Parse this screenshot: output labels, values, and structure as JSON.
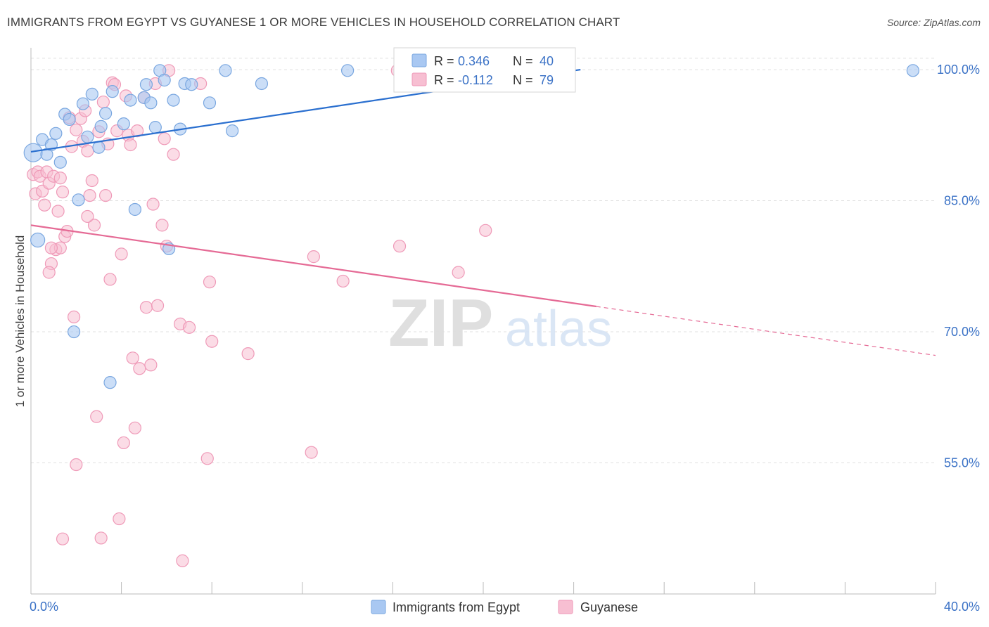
{
  "title": "IMMIGRANTS FROM EGYPT VS GUYANESE 1 OR MORE VEHICLES IN HOUSEHOLD CORRELATION CHART",
  "source": "Source: ZipAtlas.com",
  "watermark": {
    "zip": "ZIP",
    "atlas": "atlas"
  },
  "legend_box": {
    "rows": [
      {
        "r_label": "R = ",
        "r_value": "0.346",
        "n_label": "N = ",
        "n_value": "40"
      },
      {
        "r_label": "R = ",
        "r_value": "-0.112",
        "n_label": "N = ",
        "n_value": "79"
      }
    ]
  },
  "colors": {
    "egypt_fill": "#a9c8f2",
    "egypt_stroke": "#7aa7e0",
    "egypt_line": "#2a6fcf",
    "guyanese_fill": "#f7bfd2",
    "guyanese_stroke": "#ef9ab8",
    "guyanese_line": "#e56a95",
    "value_text": "#3b72c6",
    "grid": "#e0e0e0"
  },
  "chart_data": {
    "type": "scatter",
    "xlabel": "",
    "ylabel": "1 or more Vehicles in Household",
    "xlim": [
      0,
      40
    ],
    "ylim": [
      40,
      102.5
    ],
    "x_tick_labels": [
      {
        "value": 0,
        "label": "0.0%"
      },
      {
        "value": 40,
        "label": "40.0%"
      }
    ],
    "y_tick_labels": [
      {
        "value": 100,
        "label": "100.0%"
      },
      {
        "value": 85,
        "label": "85.0%"
      },
      {
        "value": 70,
        "label": "70.0%"
      },
      {
        "value": 55,
        "label": "55.0%"
      }
    ],
    "gridlines_y": [
      101.3,
      100,
      85,
      70,
      55
    ],
    "x_minor_ticks": [
      0,
      4,
      8,
      12,
      16,
      20,
      24,
      28,
      32,
      36,
      40
    ],
    "grid": true,
    "legend_position": "bottom-center",
    "series": [
      {
        "name": "Immigrants from Egypt",
        "R": 0.346,
        "N": 40,
        "trend": {
          "x0": 0,
          "y0": 90.6,
          "x1": 24.3,
          "y1": 100.0
        },
        "points": [
          [
            0.1,
            90.5
          ],
          [
            0.3,
            80.5
          ],
          [
            0.5,
            92
          ],
          [
            0.7,
            90.3
          ],
          [
            0.9,
            91.4
          ],
          [
            1.1,
            92.7
          ],
          [
            1.3,
            89.4
          ],
          [
            1.5,
            94.9
          ],
          [
            1.7,
            94.3
          ],
          [
            2.1,
            85.1
          ],
          [
            2.3,
            96.1
          ],
          [
            2.5,
            92.3
          ],
          [
            2.7,
            97.2
          ],
          [
            3.0,
            91.1
          ],
          [
            3.1,
            93.5
          ],
          [
            3.3,
            95.0
          ],
          [
            3.6,
            97.5
          ],
          [
            4.1,
            93.8
          ],
          [
            4.4,
            96.5
          ],
          [
            4.6,
            84.0
          ],
          [
            5.0,
            96.8
          ],
          [
            5.1,
            98.3
          ],
          [
            5.3,
            96.2
          ],
          [
            5.5,
            93.4
          ],
          [
            5.7,
            99.9
          ],
          [
            5.9,
            98.8
          ],
          [
            6.1,
            79.5
          ],
          [
            6.3,
            96.5
          ],
          [
            6.6,
            93.2
          ],
          [
            6.8,
            98.4
          ],
          [
            7.1,
            98.3
          ],
          [
            7.9,
            96.2
          ],
          [
            8.6,
            99.9
          ],
          [
            8.9,
            93.0
          ],
          [
            10.2,
            98.4
          ],
          [
            14.0,
            99.9
          ],
          [
            1.9,
            70.0
          ],
          [
            3.5,
            64.2
          ],
          [
            19.2,
            99.9
          ],
          [
            39.0,
            99.9
          ]
        ]
      },
      {
        "name": "Guyanese",
        "R": -0.112,
        "N": 79,
        "trend": {
          "x0": 0,
          "y0": 82.2,
          "x1": 25,
          "y1": 72.9
        },
        "trend_dashed": {
          "x0": 25,
          "y0": 72.9,
          "x1": 40,
          "y1": 67.3
        },
        "points": [
          [
            0.1,
            88.0
          ],
          [
            0.2,
            85.8
          ],
          [
            0.3,
            88.3
          ],
          [
            0.4,
            87.8
          ],
          [
            0.5,
            86.1
          ],
          [
            0.6,
            84.5
          ],
          [
            0.7,
            88.3
          ],
          [
            0.8,
            87.0
          ],
          [
            0.9,
            77.8
          ],
          [
            0.8,
            76.8
          ],
          [
            1.0,
            87.8
          ],
          [
            1.1,
            79.4
          ],
          [
            1.2,
            83.8
          ],
          [
            1.3,
            79.6
          ],
          [
            1.4,
            86.0
          ],
          [
            1.5,
            80.9
          ],
          [
            1.6,
            81.5
          ],
          [
            1.7,
            94.5
          ],
          [
            1.8,
            91.2
          ],
          [
            1.9,
            71.7
          ],
          [
            2.0,
            93.1
          ],
          [
            2.2,
            94.4
          ],
          [
            2.3,
            91.8
          ],
          [
            2.4,
            95.3
          ],
          [
            2.5,
            90.7
          ],
          [
            2.6,
            85.6
          ],
          [
            2.7,
            87.3
          ],
          [
            2.8,
            82.2
          ],
          [
            2.9,
            60.3
          ],
          [
            3.0,
            92.9
          ],
          [
            3.1,
            46.4
          ],
          [
            3.2,
            96.3
          ],
          [
            3.3,
            85.6
          ],
          [
            3.4,
            91.5
          ],
          [
            3.5,
            76.0
          ],
          [
            3.6,
            98.5
          ],
          [
            3.7,
            98.3
          ],
          [
            3.8,
            93.0
          ],
          [
            3.9,
            48.6
          ],
          [
            4.0,
            78.9
          ],
          [
            4.1,
            57.3
          ],
          [
            4.2,
            97.0
          ],
          [
            4.3,
            92.5
          ],
          [
            4.4,
            91.4
          ],
          [
            4.5,
            67.0
          ],
          [
            4.6,
            59.0
          ],
          [
            4.7,
            93.0
          ],
          [
            4.8,
            65.8
          ],
          [
            5.0,
            96.8
          ],
          [
            5.1,
            72.8
          ],
          [
            5.3,
            66.2
          ],
          [
            5.4,
            84.6
          ],
          [
            5.5,
            98.4
          ],
          [
            5.6,
            73.0
          ],
          [
            5.8,
            82.2
          ],
          [
            5.9,
            92.1
          ],
          [
            6.0,
            79.8
          ],
          [
            6.1,
            99.9
          ],
          [
            6.3,
            90.3
          ],
          [
            6.6,
            70.9
          ],
          [
            6.7,
            43.8
          ],
          [
            7.0,
            70.5
          ],
          [
            7.5,
            98.4
          ],
          [
            7.8,
            55.5
          ],
          [
            7.9,
            75.7
          ],
          [
            8.0,
            68.9
          ],
          [
            9.6,
            67.5
          ],
          [
            12.4,
            56.2
          ],
          [
            12.5,
            78.6
          ],
          [
            13.8,
            75.8
          ],
          [
            16.2,
            99.9
          ],
          [
            16.3,
            79.8
          ],
          [
            18.9,
            76.8
          ],
          [
            20.1,
            81.6
          ],
          [
            1.4,
            46.3
          ],
          [
            0.9,
            79.6
          ],
          [
            2.5,
            83.2
          ],
          [
            1.3,
            87.6
          ],
          [
            2.0,
            54.8
          ]
        ]
      }
    ]
  }
}
